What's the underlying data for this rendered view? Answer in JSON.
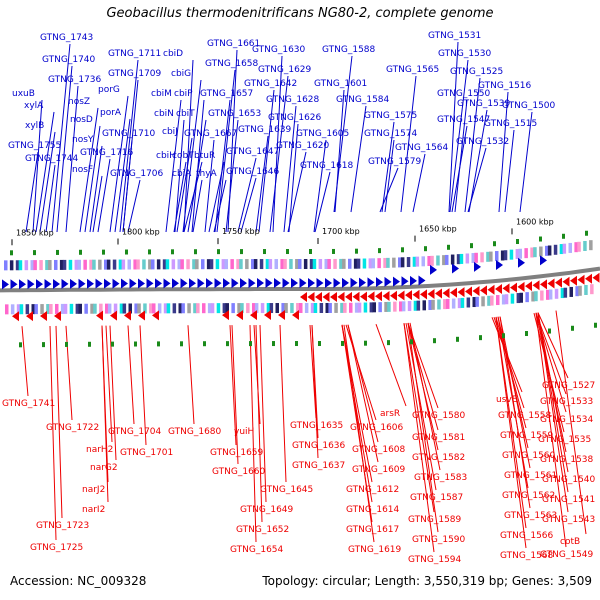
{
  "title": "Geobacillus thermodenitrificans NG80-2, complete genome",
  "footer": {
    "accession": "Accession: NC_009328",
    "topology": "Topology: circular; Length: 3,550,319 bp; Genes: 3,509"
  },
  "colors": {
    "forward_strand": "#0000cc",
    "reverse_strand": "#ee0000",
    "backbone": "#808080",
    "marker": "#1a8a1a"
  },
  "scale_ticks": [
    "1850 kbp",
    "1800 kbp",
    "1750 kbp",
    "1700 kbp",
    "1650 kbp",
    "1600 kbp"
  ],
  "top_labels": [
    "GTNG_1743",
    "GTNG_1740",
    "GTNG_1736",
    "uxuB",
    "xylA",
    "xylB",
    "GTNG_1755",
    "GTNG_1744",
    "nosZ",
    "nosD",
    "nosY",
    "nosF",
    "porG",
    "porA",
    "GTNG_1716",
    "GTNG_1710",
    "GTNG_1711",
    "GTNG_1709",
    "GTNG_1706",
    "cbiD",
    "cbiG",
    "cbiM",
    "cbiP",
    "cbiN",
    "cbiT",
    "cbiJ",
    "cbiH",
    "cbiA",
    "cobT",
    "btuR",
    "thyA",
    "GTNG_1661",
    "GTNG_1658",
    "GTNG_1657",
    "GTNG_1653",
    "GTNG_1667",
    "GTNG_1647",
    "GTNG_1646",
    "GTNG_1639",
    "GTNG_1630",
    "GTNG_1629",
    "GTNG_1642",
    "GTNG_1628",
    "GTNG_1626",
    "GTNG_1620",
    "GTNG_1618",
    "GTNG_1605",
    "GTNG_1601",
    "GTNG_1588",
    "GTNG_1584",
    "GTNG_1575",
    "GTNG_1574",
    "GTNG_1579",
    "GTNG_1565",
    "GTNG_1564",
    "GTNG_1531",
    "GTNG_1530",
    "GTNG_1525",
    "GTNG_1550",
    "GTNG_1516",
    "GTNG_1539",
    "GTNG_1547",
    "GTNG_1500",
    "GTNG_1515",
    "GTNG_1532"
  ],
  "bottom_labels": [
    "GTNG_1741",
    "GTNG_1722",
    "narH2",
    "narG2",
    "narJ2",
    "narI2",
    "GTNG_1723",
    "GTNG_1725",
    "GTNG_1704",
    "GTNG_1701",
    "GTNG_1680",
    "yuiH",
    "GTNG_1659",
    "GTNG_1660",
    "GTNG_1645",
    "GTNG_1649",
    "GTNG_1652",
    "GTNG_1654",
    "GTNG_1635",
    "GTNG_1636",
    "GTNG_1637",
    "arsR",
    "GTNG_1606",
    "GTNG_1608",
    "GTNG_1609",
    "GTNG_1612",
    "GTNG_1614",
    "GTNG_1617",
    "GTNG_1619",
    "GTNG_1580",
    "GTNG_1581",
    "GTNG_1582",
    "GTNG_1583",
    "GTNG_1587",
    "GTNG_1589",
    "GTNG_1590",
    "GTNG_1594",
    "usvE",
    "GTNG_1558",
    "GTNG_1559",
    "GTNG_1560",
    "GTNG_1561",
    "GTNG_1562",
    "GTNG_1563",
    "GTNG_1566",
    "GTNG_1568",
    "GTNG_1527",
    "GTNG_1533",
    "GTNG_1534",
    "GTNG_1535",
    "GTNG_1538",
    "GTNG_1540",
    "GTNG_1541",
    "GTNG_1543",
    "cotB",
    "GTNG_1549"
  ]
}
